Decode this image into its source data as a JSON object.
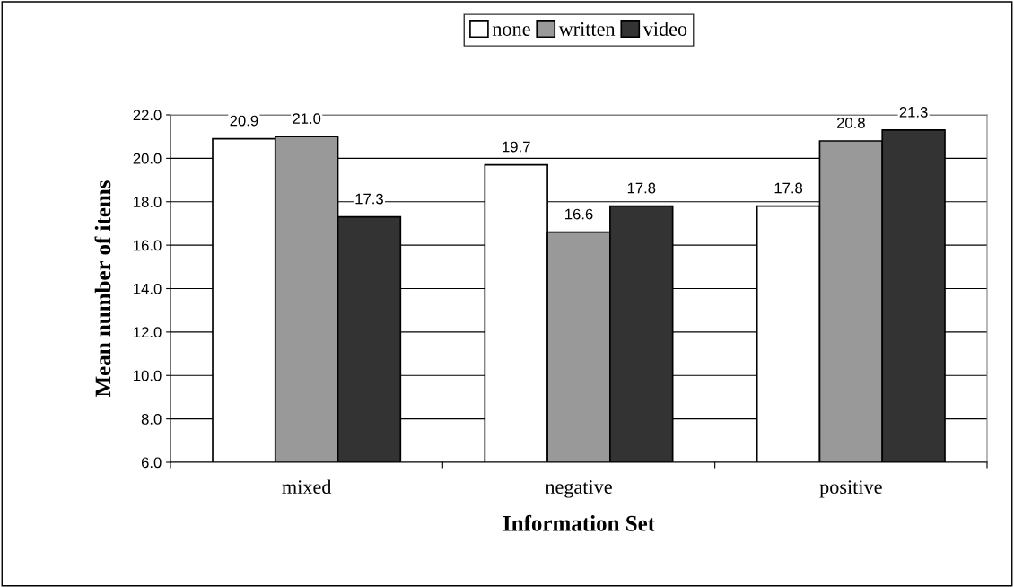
{
  "chart_data": {
    "type": "bar",
    "xlabel": "Information Set",
    "ylabel": "Mean number of items",
    "categories": [
      "mixed",
      "negative",
      "positive"
    ],
    "series": [
      {
        "name": "none",
        "color": "#ffffff",
        "values": [
          20.9,
          19.7,
          17.8
        ],
        "value_labels": [
          "20.9",
          "19.7",
          "17.8"
        ]
      },
      {
        "name": "written",
        "color": "#999999",
        "values": [
          21.0,
          16.6,
          20.8
        ],
        "value_labels": [
          "21.0",
          "16.6",
          "20.8"
        ]
      },
      {
        "name": "video",
        "color": "#333333",
        "values": [
          17.3,
          17.8,
          21.3
        ],
        "value_labels": [
          "17.3",
          "17.8",
          "21.3"
        ]
      }
    ],
    "ylim": [
      6,
      22
    ],
    "yticks": [
      {
        "value": 6,
        "label": "6.0"
      },
      {
        "value": 8,
        "label": "8.0"
      },
      {
        "value": 10,
        "label": "10.0"
      },
      {
        "value": 12,
        "label": "12.0"
      },
      {
        "value": 14,
        "label": "14.0"
      },
      {
        "value": 16,
        "label": "16.0"
      },
      {
        "value": 18,
        "label": "18.0"
      },
      {
        "value": 20,
        "label": "20.0"
      },
      {
        "value": 22,
        "label": "22.0"
      }
    ],
    "grid": "y",
    "legend": "top"
  }
}
